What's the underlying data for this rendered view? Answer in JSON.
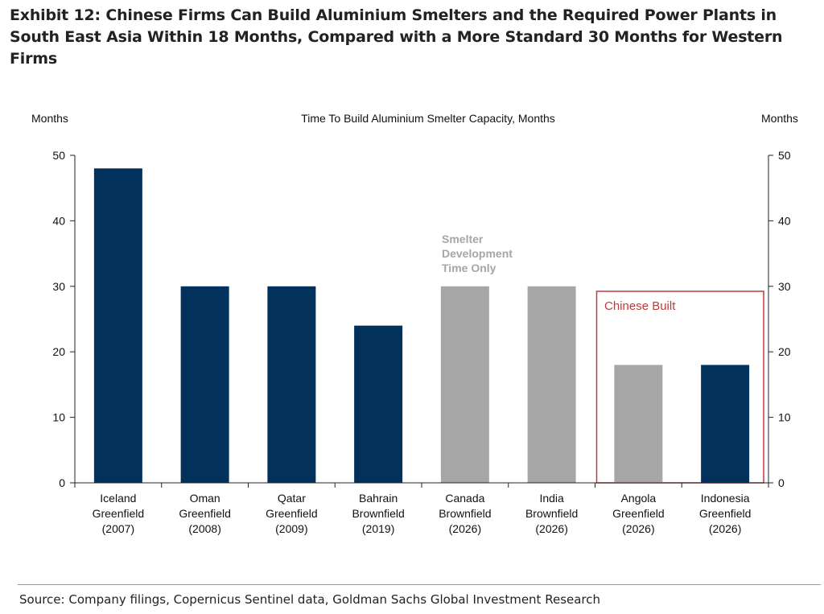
{
  "title": "Exhibit 12: Chinese Firms Can Build Aluminium Smelters and the Required Power Plants in South East Asia Within 18 Months, Compared with a More Standard 30 Months for Western Firms",
  "source": "Source: Company filings, Copernicus Sentinel data, Goldman Sachs Global Investment Research",
  "chart_data": {
    "type": "bar",
    "title": "Time To Build Aluminium Smelter Capacity, Months",
    "ylabel_left": "Months",
    "ylabel_right": "Months",
    "ylim": [
      0,
      50
    ],
    "yticks": [
      0,
      10,
      20,
      30,
      40,
      50
    ],
    "categories": [
      [
        "Iceland",
        "Greenfield",
        "(2007)"
      ],
      [
        "Oman",
        "Greenfield",
        "(2008)"
      ],
      [
        "Qatar",
        "Greenfield",
        "(2009)"
      ],
      [
        "Bahrain",
        "Brownfield",
        "(2019)"
      ],
      [
        "Canada",
        "Brownfield",
        "(2026)"
      ],
      [
        "India",
        "Brownfield",
        "(2026)"
      ],
      [
        "Angola",
        "Greenfield",
        "(2026)"
      ],
      [
        "Indonesia",
        "Greenfield",
        "(2026)"
      ]
    ],
    "values": [
      48,
      30,
      30,
      24,
      30,
      30,
      18,
      18
    ],
    "bar_types": [
      "full",
      "full",
      "full",
      "full",
      "smelter_only",
      "smelter_only",
      "smelter_only",
      "full"
    ],
    "colors": {
      "full": "#02315b",
      "smelter_only": "#a6a6a6",
      "highlight": "#c0393b"
    },
    "annotations": {
      "smelter_only": [
        "Smelter",
        "Development",
        "Time Only"
      ],
      "highlight_box": "Chinese Built"
    },
    "highlight_categories": [
      6,
      7
    ]
  }
}
